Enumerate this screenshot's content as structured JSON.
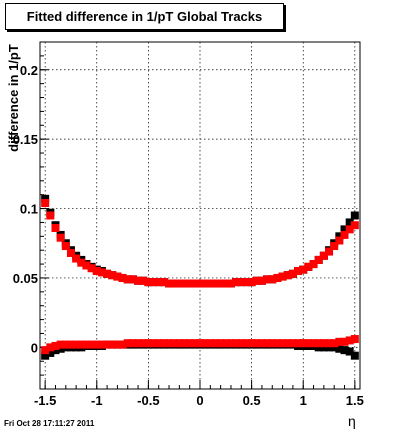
{
  "title": "Fitted difference in 1/pT  Global Tracks",
  "timestamp": "Fri Oct 28 17:11:27 2011",
  "chart_data": {
    "type": "scatter",
    "title": "Fitted difference in 1/pT  Global Tracks",
    "xlabel": "η",
    "ylabel": "difference in 1/pT",
    "xlim": [
      -1.55,
      1.55
    ],
    "ylim": [
      -0.03,
      0.22
    ],
    "xticks": [
      -1.5,
      -1,
      -0.5,
      0,
      0.5,
      1,
      1.5
    ],
    "xtick_labels": [
      "-1.5",
      "-1",
      "-0.5",
      "0",
      "0.5",
      "1",
      "1.5"
    ],
    "yticks": [
      0,
      0.05,
      0.1,
      0.15,
      0.2
    ],
    "ytick_labels": [
      "0",
      "0.05",
      "0.1",
      "0.15",
      "0.2"
    ],
    "grid": true,
    "x": [
      -1.5,
      -1.45,
      -1.4,
      -1.35,
      -1.3,
      -1.25,
      -1.2,
      -1.15,
      -1.1,
      -1.05,
      -1.0,
      -0.95,
      -0.9,
      -0.85,
      -0.8,
      -0.75,
      -0.7,
      -0.65,
      -0.6,
      -0.55,
      -0.5,
      -0.45,
      -0.4,
      -0.35,
      -0.3,
      -0.25,
      -0.2,
      -0.15,
      -0.1,
      -0.05,
      0.0,
      0.05,
      0.1,
      0.15,
      0.2,
      0.25,
      0.3,
      0.35,
      0.4,
      0.45,
      0.5,
      0.55,
      0.6,
      0.65,
      0.7,
      0.75,
      0.8,
      0.85,
      0.9,
      0.95,
      1.0,
      1.05,
      1.1,
      1.15,
      1.2,
      1.25,
      1.3,
      1.35,
      1.4,
      1.45,
      1.5
    ],
    "series": [
      {
        "color": "#000000",
        "values": [
          0.107,
          0.097,
          0.088,
          0.081,
          0.075,
          0.07,
          0.066,
          0.063,
          0.06,
          0.058,
          0.056,
          0.055,
          0.053,
          0.052,
          0.051,
          0.05,
          0.049,
          0.049,
          0.048,
          0.048,
          0.047,
          0.047,
          0.047,
          0.047,
          0.046,
          0.046,
          0.046,
          0.046,
          0.046,
          0.046,
          0.046,
          0.046,
          0.046,
          0.046,
          0.046,
          0.046,
          0.046,
          0.047,
          0.047,
          0.047,
          0.047,
          0.048,
          0.048,
          0.049,
          0.049,
          0.05,
          0.051,
          0.052,
          0.053,
          0.055,
          0.056,
          0.058,
          0.06,
          0.063,
          0.066,
          0.07,
          0.075,
          0.08,
          0.085,
          0.09,
          0.095
        ]
      },
      {
        "color": "#000000",
        "values": [
          -0.006,
          -0.004,
          -0.002,
          -0.001,
          0.0,
          0.0,
          0.0,
          0.0,
          0.001,
          0.001,
          0.001,
          0.001,
          0.002,
          0.002,
          0.002,
          0.002,
          0.002,
          0.002,
          0.002,
          0.002,
          0.002,
          0.002,
          0.002,
          0.002,
          0.002,
          0.002,
          0.002,
          0.002,
          0.002,
          0.002,
          0.002,
          0.002,
          0.002,
          0.002,
          0.002,
          0.002,
          0.002,
          0.002,
          0.002,
          0.002,
          0.002,
          0.002,
          0.002,
          0.002,
          0.002,
          0.002,
          0.002,
          0.002,
          0.002,
          0.001,
          0.001,
          0.001,
          0.001,
          0.0,
          0.0,
          0.0,
          0.0,
          -0.001,
          -0.002,
          -0.003,
          -0.006
        ]
      },
      {
        "color": "#ff0000",
        "values": [
          0.104,
          0.095,
          0.086,
          0.079,
          0.073,
          0.068,
          0.064,
          0.061,
          0.059,
          0.057,
          0.055,
          0.054,
          0.053,
          0.052,
          0.051,
          0.05,
          0.049,
          0.049,
          0.048,
          0.048,
          0.047,
          0.047,
          0.047,
          0.047,
          0.046,
          0.046,
          0.046,
          0.046,
          0.046,
          0.046,
          0.046,
          0.046,
          0.046,
          0.046,
          0.046,
          0.046,
          0.046,
          0.047,
          0.047,
          0.047,
          0.047,
          0.048,
          0.048,
          0.049,
          0.049,
          0.05,
          0.051,
          0.052,
          0.053,
          0.055,
          0.056,
          0.058,
          0.06,
          0.063,
          0.066,
          0.069,
          0.073,
          0.077,
          0.081,
          0.085,
          0.088
        ]
      },
      {
        "color": "#ff0000",
        "values": [
          -0.002,
          0.0,
          0.001,
          0.002,
          0.002,
          0.002,
          0.002,
          0.002,
          0.002,
          0.002,
          0.002,
          0.002,
          0.002,
          0.002,
          0.002,
          0.002,
          0.003,
          0.003,
          0.003,
          0.003,
          0.003,
          0.003,
          0.003,
          0.003,
          0.003,
          0.003,
          0.003,
          0.003,
          0.003,
          0.003,
          0.003,
          0.003,
          0.003,
          0.003,
          0.003,
          0.003,
          0.003,
          0.003,
          0.003,
          0.003,
          0.003,
          0.003,
          0.003,
          0.003,
          0.003,
          0.003,
          0.003,
          0.003,
          0.003,
          0.003,
          0.003,
          0.003,
          0.003,
          0.003,
          0.003,
          0.003,
          0.003,
          0.004,
          0.004,
          0.005,
          0.006
        ]
      }
    ]
  }
}
